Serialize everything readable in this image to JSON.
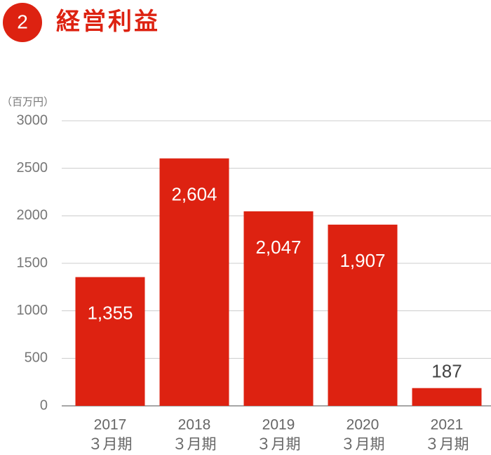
{
  "chart_data": {
    "type": "bar",
    "section_number": "2",
    "title": "経営利益",
    "y_unit": "（百万円）",
    "categories": [
      [
        "2017",
        "３月期"
      ],
      [
        "2018",
        "３月期"
      ],
      [
        "2019",
        "３月期"
      ],
      [
        "2020",
        "３月期"
      ],
      [
        "2021",
        "３月期"
      ]
    ],
    "values": [
      1355,
      2604,
      2047,
      1907,
      187
    ],
    "value_labels": [
      "1,355",
      "2,604",
      "2,047",
      "1,907",
      "187"
    ],
    "color": "#dd2211",
    "ylim": [
      0,
      3000
    ],
    "yticks": [
      0,
      500,
      1000,
      1500,
      2000,
      2500,
      3000
    ],
    "grid": true
  }
}
